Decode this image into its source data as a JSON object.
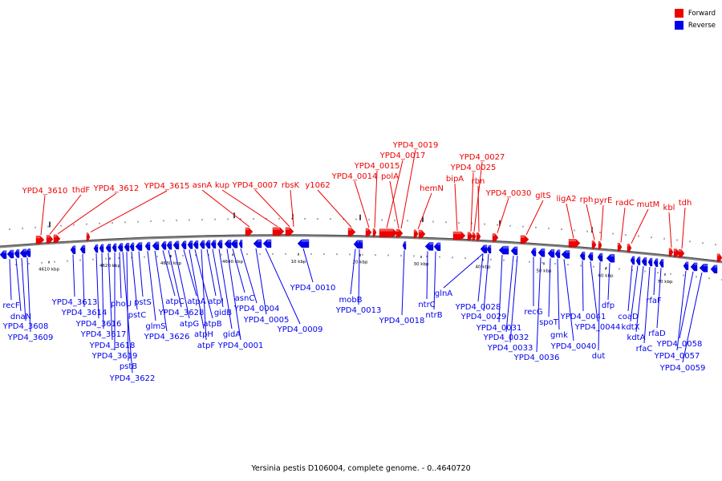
{
  "legend": {
    "forward_label": "Forward",
    "reverse_label": "Reverse",
    "forward_color": "#ee0000",
    "reverse_color": "#0000ee"
  },
  "caption": "Yersinia pestis D106004, complete genome. - 0..4640720",
  "scale_labels": [
    "4610 kbp",
    "4620 kbp",
    "4630 kbp",
    "4640 kbp",
    "10 kbp",
    "20 kbp",
    "30 kbp",
    "40 kbp",
    "50 kbp",
    "60 kbp",
    "70 kbp"
  ],
  "forward_genes": [
    "YPD4_3610",
    "thdF",
    "YPD4_3612",
    "YPD4_3615",
    "asnA",
    "kup",
    "YPD4_0007",
    "rbsK",
    "y1062",
    "YPD4_0014",
    "YPD4_0015",
    "YPD4_0017",
    "YPD4_0019",
    "polA",
    "hemN",
    "bipA",
    "YPD4_0025",
    "YPD4_0027",
    "rbn",
    "YPD4_0030",
    "gltS",
    "ligA2",
    "rph",
    "pyrE",
    "radC",
    "mutM",
    "kbl",
    "tdh"
  ],
  "reverse_genes": [
    "recF",
    "dnaN",
    "YPD4_3608",
    "YPD4_3609",
    "YPD4_3613",
    "YPD4_3614",
    "YPD4_3616",
    "YPD4_3617",
    "YPD4_3618",
    "YPD4_3619",
    "YPD4_3622",
    "phoU",
    "pstB",
    "pstC",
    "pstS",
    "glmS",
    "YPD4_3626",
    "atpC",
    "YPD4_3628",
    "atpG",
    "atpA",
    "atpH",
    "atpB",
    "atpF",
    "atpI",
    "gidB",
    "gidA",
    "YPD4_0001",
    "asnC",
    "YPD4_0004",
    "YPD4_0005",
    "YPD4_0009",
    "YPD4_0010",
    "mobB",
    "YPD4_0013",
    "YPD4_0018",
    "ntrC",
    "ntrB",
    "glnA",
    "YPD4_0028",
    "YPD4_0029",
    "YPD4_0031",
    "YPD4_0032",
    "YPD4_0033",
    "recG",
    "YPD4_0036",
    "spoT",
    "gmk",
    "YPD4_0040",
    "YPD4_0041",
    "YPD4_0044",
    "dut",
    "dfp",
    "coaD",
    "kdtX",
    "kdtA",
    "rfaC",
    "rfaF",
    "rfaD",
    "YPD4_0057",
    "YPD4_0058",
    "YPD4_0059"
  ]
}
